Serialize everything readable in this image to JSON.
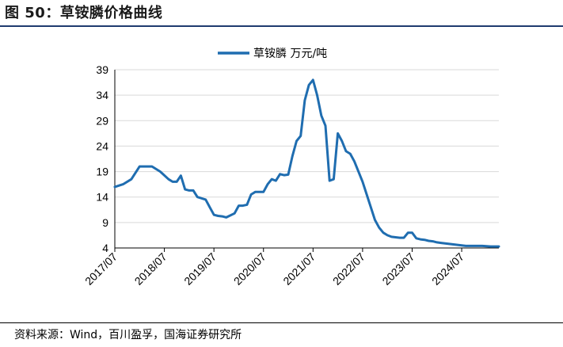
{
  "figure": {
    "title": "图 50：草铵膦价格曲线",
    "source": "资料来源：Wind，百川盈孚，国海证券研究所"
  },
  "chart_data": {
    "type": "line",
    "title": "",
    "xlabel": "",
    "ylabel": "",
    "ylim": [
      4,
      39
    ],
    "yticks": [
      4,
      9,
      14,
      19,
      24,
      29,
      34,
      39
    ],
    "x_tick_labels": [
      "2017/07",
      "2018/07",
      "2019/07",
      "2020/07",
      "2021/07",
      "2022/07",
      "2023/07",
      "2024/07"
    ],
    "grid": "horizontal",
    "legend_position": "top-center",
    "series_color": "#1f6db0",
    "series": [
      {
        "name": "草铵膦 万元/吨",
        "x": [
          "2017/07",
          "2017/09",
          "2017/11",
          "2018/01",
          "2018/02",
          "2018/04",
          "2018/06",
          "2018/08",
          "2018/09",
          "2018/10",
          "2018/11",
          "2018/12",
          "2019/01",
          "2019/02",
          "2019/03",
          "2019/05",
          "2019/06",
          "2019/07",
          "2019/08",
          "2019/09",
          "2019/10",
          "2019/12",
          "2020/01",
          "2020/02",
          "2020/03",
          "2020/04",
          "2020/05",
          "2020/07",
          "2020/08",
          "2020/09",
          "2020/10",
          "2020/11",
          "2020/12",
          "2021/01",
          "2021/02",
          "2021/03",
          "2021/04",
          "2021/05",
          "2021/06",
          "2021/07",
          "2021/08",
          "2021/09",
          "2021/10",
          "2021/11",
          "2021/12",
          "2022/01",
          "2022/02",
          "2022/03",
          "2022/04",
          "2022/05",
          "2022/06",
          "2022/07",
          "2022/08",
          "2022/09",
          "2022/10",
          "2022/11",
          "2022/12",
          "2023/01",
          "2023/02",
          "2023/03",
          "2023/04",
          "2023/05",
          "2023/06",
          "2023/07",
          "2023/08",
          "2023/09",
          "2023/10",
          "2023/11",
          "2023/12",
          "2024/01",
          "2024/02",
          "2024/04",
          "2024/06",
          "2024/08",
          "2024/10",
          "2024/12",
          "2025/02",
          "2025/04"
        ],
        "values": [
          16.0,
          16.5,
          17.5,
          20.0,
          20.0,
          20.0,
          19.0,
          17.5,
          17.0,
          17.0,
          18.2,
          15.5,
          15.3,
          15.3,
          14.0,
          13.5,
          12.0,
          10.5,
          10.3,
          10.2,
          10.0,
          10.8,
          12.3,
          12.3,
          12.5,
          14.5,
          15.0,
          15.0,
          16.5,
          17.5,
          17.2,
          18.5,
          18.3,
          18.4,
          22.0,
          25.0,
          26.0,
          33.0,
          36.0,
          37.0,
          34.0,
          30.0,
          28.0,
          17.2,
          17.5,
          26.5,
          25.0,
          23.0,
          22.5,
          21.0,
          19.0,
          17.0,
          14.5,
          12.0,
          9.5,
          8.0,
          7.0,
          6.5,
          6.2,
          6.1,
          6.0,
          6.0,
          7.0,
          7.0,
          5.9,
          5.7,
          5.6,
          5.4,
          5.3,
          5.1,
          5.0,
          4.8,
          4.6,
          4.4,
          4.4,
          4.4,
          4.3,
          4.3
        ]
      }
    ]
  }
}
